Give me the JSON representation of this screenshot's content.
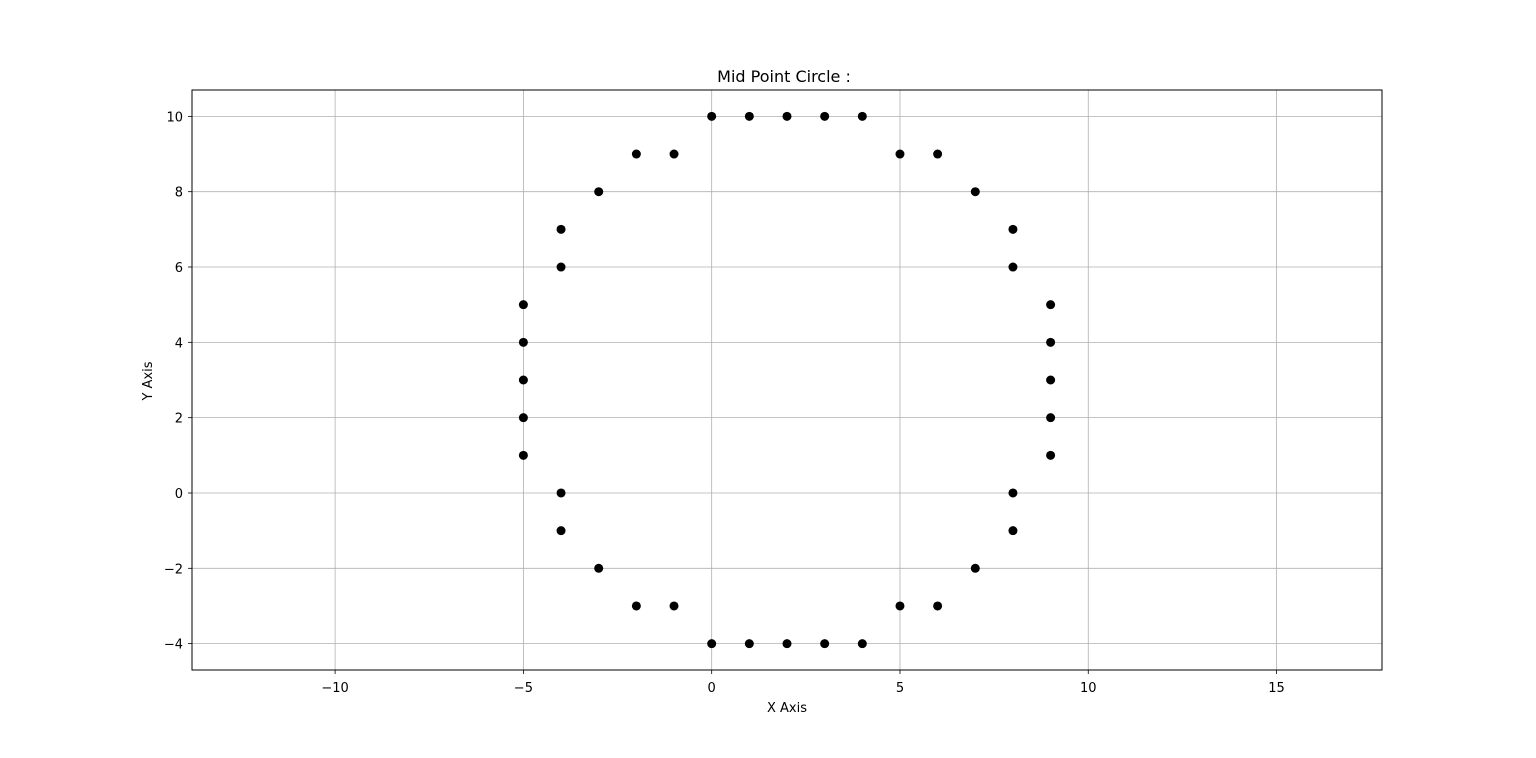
{
  "chart_data": {
    "type": "scatter",
    "title": "Mid Point Circle :",
    "xlabel": "X Axis",
    "ylabel": "Y Axis",
    "xlim": [
      -13.8,
      17.8
    ],
    "ylim": [
      -4.7,
      10.7
    ],
    "xticks": [
      -10,
      -5,
      0,
      5,
      10,
      15
    ],
    "yticks": [
      -4,
      -2,
      0,
      2,
      4,
      6,
      8,
      10
    ],
    "xtick_labels": [
      "−10",
      "−5",
      "0",
      "5",
      "10",
      "15"
    ],
    "ytick_labels": [
      "−4",
      "−2",
      "0",
      "2",
      "4",
      "6",
      "8",
      "10"
    ],
    "grid": true,
    "marker_color": "#000000",
    "grid_color": "#b0b0b0",
    "points": [
      {
        "x": 0,
        "y": 10
      },
      {
        "x": 1,
        "y": 10
      },
      {
        "x": 2,
        "y": 10
      },
      {
        "x": 3,
        "y": 10
      },
      {
        "x": 4,
        "y": 10
      },
      {
        "x": -2,
        "y": 9
      },
      {
        "x": -1,
        "y": 9
      },
      {
        "x": 5,
        "y": 9
      },
      {
        "x": 6,
        "y": 9
      },
      {
        "x": -3,
        "y": 8
      },
      {
        "x": 7,
        "y": 8
      },
      {
        "x": -4,
        "y": 7
      },
      {
        "x": 8,
        "y": 7
      },
      {
        "x": -4,
        "y": 6
      },
      {
        "x": 8,
        "y": 6
      },
      {
        "x": -5,
        "y": 5
      },
      {
        "x": 9,
        "y": 5
      },
      {
        "x": -5,
        "y": 4
      },
      {
        "x": 9,
        "y": 4
      },
      {
        "x": -5,
        "y": 3
      },
      {
        "x": 9,
        "y": 3
      },
      {
        "x": -5,
        "y": 2
      },
      {
        "x": 9,
        "y": 2
      },
      {
        "x": -5,
        "y": 1
      },
      {
        "x": 9,
        "y": 1
      },
      {
        "x": -4,
        "y": 0
      },
      {
        "x": 8,
        "y": 0
      },
      {
        "x": -4,
        "y": -1
      },
      {
        "x": 8,
        "y": -1
      },
      {
        "x": -3,
        "y": -2
      },
      {
        "x": 7,
        "y": -2
      },
      {
        "x": -2,
        "y": -3
      },
      {
        "x": -1,
        "y": -3
      },
      {
        "x": 5,
        "y": -3
      },
      {
        "x": 6,
        "y": -3
      },
      {
        "x": 0,
        "y": -4
      },
      {
        "x": 1,
        "y": -4
      },
      {
        "x": 2,
        "y": -4
      },
      {
        "x": 3,
        "y": -4
      },
      {
        "x": 4,
        "y": -4
      }
    ]
  }
}
